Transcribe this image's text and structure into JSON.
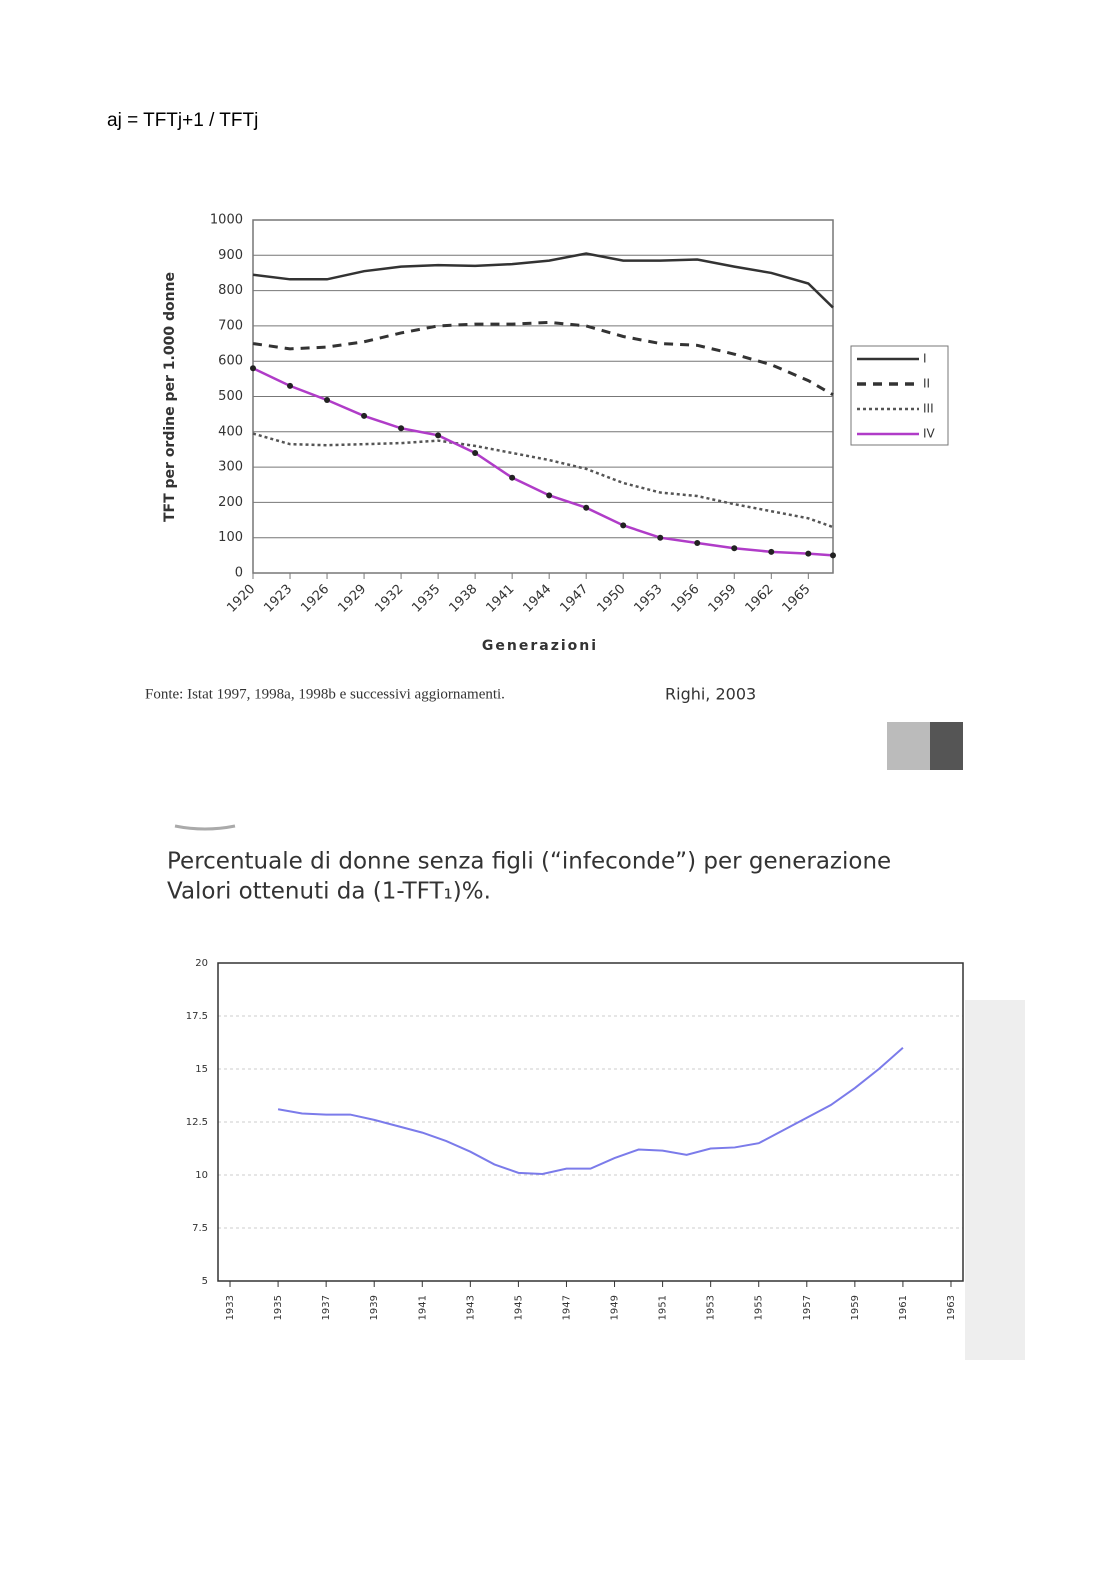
{
  "formula": "aj = TFTj+1 / TFTj",
  "chart_data": [
    {
      "type": "line",
      "y_label": "TFT per ordine per 1.000 donne",
      "x_label": "Generazioni",
      "source": "Fonte: Istat 1997, 1998a, 1998b e successivi aggiornamenti.",
      "credit": "Righi, 2003",
      "x": [
        1920,
        1923,
        1926,
        1929,
        1932,
        1935,
        1938,
        1941,
        1944,
        1947,
        1950,
        1953,
        1956,
        1959,
        1962,
        1965,
        1967
      ],
      "xlim": [
        1920,
        1967
      ],
      "xticks": [
        1920,
        1923,
        1926,
        1929,
        1932,
        1935,
        1938,
        1941,
        1944,
        1947,
        1950,
        1953,
        1956,
        1959,
        1962,
        1965
      ],
      "ylim": [
        0,
        1000
      ],
      "yticks": [
        0,
        100,
        200,
        300,
        400,
        500,
        600,
        700,
        800,
        900,
        1000
      ],
      "grid": true,
      "legend": "right",
      "series": [
        {
          "name": "I",
          "color": "#333333",
          "style": "solid",
          "values": [
            845,
            832,
            832,
            855,
            868,
            872,
            870,
            875,
            885,
            905,
            885,
            885,
            888,
            868,
            850,
            820,
            752
          ]
        },
        {
          "name": "II",
          "color": "#333333",
          "style": "dashed",
          "values": [
            650,
            635,
            640,
            655,
            680,
            700,
            705,
            705,
            710,
            700,
            670,
            650,
            645,
            620,
            590,
            545,
            505
          ]
        },
        {
          "name": "III",
          "color": "#555555",
          "style": "dotted",
          "values": [
            395,
            365,
            362,
            365,
            368,
            375,
            360,
            340,
            320,
            295,
            255,
            228,
            218,
            195,
            175,
            155,
            130
          ]
        },
        {
          "name": "IV",
          "color": "#b03cc8",
          "style": "solid",
          "markers": true,
          "values": [
            580,
            530,
            490,
            445,
            410,
            390,
            340,
            270,
            220,
            185,
            135,
            100,
            85,
            70,
            60,
            55,
            50
          ]
        }
      ]
    },
    {
      "type": "line",
      "title": "Percentuale di donne senza figli (“infeconde”) per generazione",
      "subtitle": "Valori ottenuti da (1-TFT₁)%.",
      "x": [
        1935,
        1936,
        1937,
        1938,
        1939,
        1940,
        1941,
        1942,
        1943,
        1944,
        1945,
        1946,
        1947,
        1948,
        1949,
        1950,
        1951,
        1952,
        1953,
        1954,
        1955,
        1956,
        1957,
        1958,
        1959,
        1960,
        1961
      ],
      "values": [
        13.1,
        12.9,
        12.85,
        12.85,
        12.6,
        12.3,
        12.0,
        11.6,
        11.1,
        10.5,
        10.1,
        10.05,
        10.3,
        10.3,
        10.8,
        11.2,
        11.15,
        10.95,
        11.25,
        11.3,
        11.5,
        12.1,
        12.7,
        13.3,
        14.1,
        15.0,
        16.0
      ],
      "color": "#7b7bea",
      "xlim": [
        1932.5,
        1963.5
      ],
      "xticks": [
        1933,
        1935,
        1937,
        1939,
        1941,
        1943,
        1945,
        1947,
        1949,
        1951,
        1953,
        1955,
        1957,
        1959,
        1961,
        1963
      ],
      "ylim": [
        5,
        20
      ],
      "yticks": [
        5,
        7.5,
        10,
        12.5,
        15,
        17.5,
        20
      ],
      "grid": true
    }
  ]
}
